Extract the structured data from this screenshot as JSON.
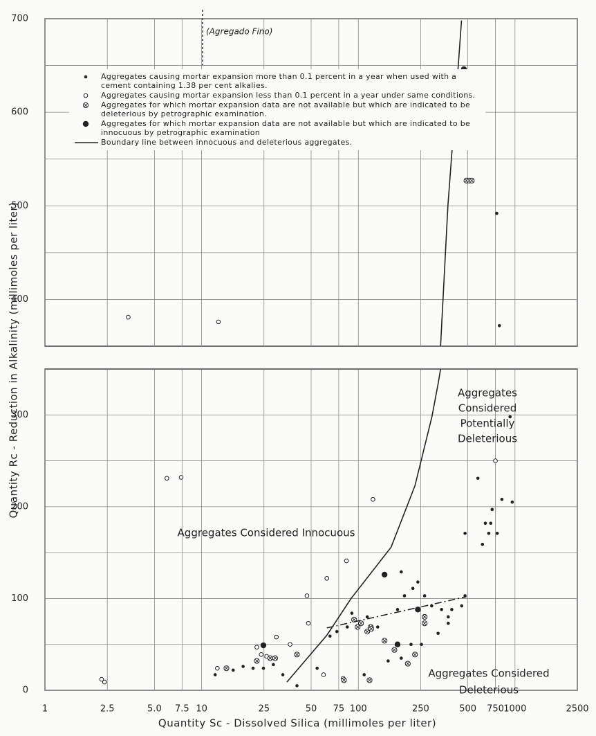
{
  "chart_data": [
    {
      "type": "scatter",
      "xscale": "log",
      "xlim": [
        1,
        2500
      ],
      "ylim": [
        350,
        700
      ],
      "xticks": [
        1,
        2.5,
        5,
        7.5,
        10,
        25,
        50,
        75,
        100,
        250,
        500,
        750,
        1000,
        2500
      ],
      "xtick_labels": false,
      "yticks": [
        400,
        500,
        600,
        700
      ],
      "yticks_minor": [
        450,
        550,
        650
      ],
      "grid": true,
      "annotations": [
        "(Agregado Fino)"
      ],
      "series": [
        {
          "name": "Aggregates causing mortar expansion more than 0.1 percent in a year when used with a cement containing 1.38 per cent alkalies.",
          "marker": "dot",
          "color": "#222222",
          "x": [
            765,
            795
          ],
          "values": [
            492,
            372
          ]
        },
        {
          "name": "Aggregates causing mortar expansion less than 0.1 percent in a year under same conditions.",
          "marker": "open",
          "color": "#222222",
          "x": [
            3.4,
            12.8
          ],
          "values": [
            381,
            376
          ]
        },
        {
          "name": "Aggregates for which mortar expansion data are not available but which are indicated to be deleterious by petrographic examination.",
          "marker": "cross",
          "color": "#222222",
          "x": [
            490,
            510,
            530
          ],
          "values": [
            527,
            527,
            527
          ]
        },
        {
          "name": "Aggregates for which mortar expansion data are not available but which are indicated to be innocuous by petrographic examination",
          "marker": "big",
          "color": "#222222",
          "x": [
            472
          ],
          "values": [
            646
          ]
        },
        {
          "name": "Boundary line between innocuous and deleterious aggregates.",
          "marker": "line",
          "color": "#222222",
          "x": [
            335,
            373,
            412,
            456
          ],
          "values": [
            350,
            500,
            597,
            698
          ]
        }
      ]
    },
    {
      "type": "scatter",
      "xscale": "log",
      "xlim": [
        1,
        2500
      ],
      "ylim": [
        0,
        350
      ],
      "xticks": [
        1,
        2.5,
        {
          "value": 5,
          "label": "5.0"
        },
        7.5,
        10,
        25,
        50,
        75,
        100,
        250,
        500,
        750,
        1000,
        2500
      ],
      "xtick_labels": true,
      "yticks": [
        0,
        100,
        200,
        300
      ],
      "yticks_minor": [
        50,
        150,
        250
      ],
      "grid": true,
      "ylabel": "Quantity Rc - Reduction in Alkalinity (millimoles per liter)",
      "xlabel": "Quantity Sc - Dissolved Silica (millimoles per liter)",
      "annotations": [
        [
          "Aggregates",
          "Considered",
          "Potentially",
          "Deleterious"
        ],
        [
          "Aggregates Considered Innocuous"
        ],
        [
          "Aggregates Considered",
          "Deleterious"
        ]
      ],
      "series": [
        {
          "marker": "dot",
          "color": "#222222",
          "x": [
            12.2,
            15.9,
            18.4,
            21.3,
            24.8,
            28.7,
            33,
            40.6,
            54.6,
            66,
            73,
            85,
            91,
            188,
            240,
            265,
            294,
            340,
            395,
            375,
            109,
            155,
            188,
            217,
            253,
            323,
            375,
            133,
            114,
            178,
            197,
            223,
            480,
            647,
            680,
            715,
            770,
            580,
            825,
            960,
            930,
            620,
            700,
            480,
            457
          ],
          "values": [
            17,
            22,
            26,
            24,
            24,
            28,
            17,
            5,
            24,
            59,
            64,
            69,
            84,
            129,
            118,
            103,
            92,
            88,
            88,
            80,
            17,
            32,
            35,
            50,
            50,
            62,
            73,
            69,
            80,
            88,
            103,
            111,
            171,
            182,
            171,
            197,
            171,
            231,
            208,
            205,
            298,
            159,
            182,
            103,
            92
          ]
        },
        {
          "marker": "open",
          "color": "#222222",
          "x": [
            6,
            7.4,
            2.3,
            2.4,
            124,
            84,
            63,
            47,
            48,
            30,
            22.5,
            24,
            26,
            36.7,
            80,
            60,
            12.6,
            750
          ],
          "values": [
            231,
            232,
            12,
            9,
            208,
            141,
            122,
            103,
            73,
            58,
            47,
            39,
            37,
            50,
            13,
            17,
            24,
            250
          ]
        },
        {
          "marker": "cross",
          "color": "#222222",
          "x": [
            29.5,
            94,
            99,
            104,
            120,
            121,
            114,
            147,
            170,
            207,
            230,
            265,
            265,
            81,
            118,
            40.6,
            27.4,
            22.5,
            14.4
          ],
          "values": [
            35,
            77,
            69,
            73,
            69,
            67,
            64,
            54,
            44,
            29,
            39,
            80,
            73,
            11,
            11,
            39,
            35,
            32,
            24
          ]
        },
        {
          "marker": "big",
          "color": "#222222",
          "x": [
            147,
            24.8,
            178,
            240
          ],
          "values": [
            126,
            49,
            50,
            88
          ]
        },
        {
          "marker": "line",
          "color": "#222222",
          "x": [
            35,
            63,
            90,
            162,
            230,
            295,
            324,
            335
          ],
          "values": [
            9,
            60,
            100,
            156,
            223,
            298,
            335,
            350
          ]
        },
        {
          "marker": "line",
          "dash": true,
          "color": "#222222",
          "x": [
            63,
            490
          ],
          "values": [
            68,
            102
          ]
        }
      ]
    }
  ]
}
